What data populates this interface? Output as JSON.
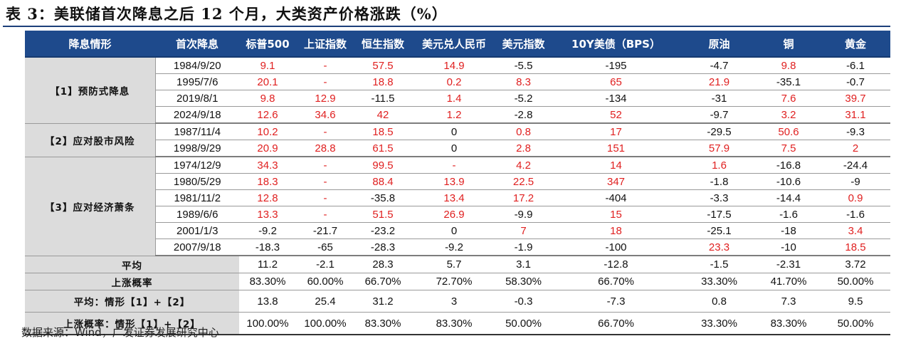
{
  "title": "表 3：美联储首次降息之后 12 个月，大类资产价格涨跌（%）",
  "source": "数据来源：Wind，广发证券发展研究中心",
  "colors": {
    "header_bg": "#1e4a8c",
    "label_bg": "#dcdcdc",
    "up_red": "#e02020"
  },
  "headers": [
    "降息情形",
    "首次降息",
    "标普500",
    "上证指数",
    "恒生指数",
    "美元兑人民币",
    "美元指数",
    "10Y美债（BPS）",
    "原油",
    "铜",
    "黄金"
  ],
  "groups": [
    {
      "label": "【1】预防式降息",
      "rows": [
        {
          "date": "1984/9/20",
          "values": [
            "9.1",
            "-",
            "57.5",
            "14.9",
            "-5.5",
            "-195",
            "-4.7",
            "9.8",
            "-6.1"
          ]
        },
        {
          "date": "1995/7/6",
          "values": [
            "20.1",
            "-",
            "18.8",
            "0.2",
            "8.3",
            "65",
            "21.9",
            "-35.1",
            "-0.7"
          ]
        },
        {
          "date": "2019/8/1",
          "values": [
            "9.8",
            "12.9",
            "-11.5",
            "1.4",
            "-5.2",
            "-134",
            "-31",
            "7.6",
            "39.7"
          ]
        },
        {
          "date": "2024/9/18",
          "values": [
            "12.6",
            "34.6",
            "42",
            "1.2",
            "-2.8",
            "52",
            "-9.7",
            "3.2",
            "31.1"
          ]
        }
      ]
    },
    {
      "label": "【2】应对股市风险",
      "rows": [
        {
          "date": "1987/11/4",
          "values": [
            "10.2",
            "-",
            "18.5",
            "0",
            "0.8",
            "17",
            "-29.5",
            "50.6",
            "-9.3"
          ]
        },
        {
          "date": "1998/9/29",
          "values": [
            "20.9",
            "28.8",
            "61.5",
            "0",
            "2.8",
            "151",
            "57.9",
            "7.5",
            "2"
          ]
        }
      ]
    },
    {
      "label": "【3】应对经济萧条",
      "rows": [
        {
          "date": "1974/12/9",
          "values": [
            "34.3",
            "-",
            "99.5",
            "-",
            "4.2",
            "14",
            "1.6",
            "-16.8",
            "-24.4"
          ]
        },
        {
          "date": "1980/5/29",
          "values": [
            "18.3",
            "-",
            "88.4",
            "13.9",
            "22.5",
            "347",
            "-1.8",
            "-10.6",
            "-9"
          ]
        },
        {
          "date": "1981/11/2",
          "values": [
            "12.8",
            "-",
            "-35.8",
            "13.4",
            "17.2",
            "-404",
            "-3.3",
            "-14.4",
            "0.9"
          ]
        },
        {
          "date": "1989/6/6",
          "values": [
            "13.3",
            "-",
            "51.5",
            "26.9",
            "-9.9",
            "15",
            "-17.5",
            "-1.6",
            "-1.6"
          ]
        },
        {
          "date": "2001/1/3",
          "values": [
            "-9.2",
            "-21.7",
            "-23.2",
            "0",
            "7",
            "18",
            "-25.1",
            "-18",
            "3.4"
          ]
        },
        {
          "date": "2007/9/18",
          "values": [
            "-18.3",
            "-65",
            "-28.3",
            "-9.2",
            "-1.9",
            "-100",
            "23.3",
            "-10",
            "18.5"
          ]
        }
      ]
    }
  ],
  "summary": [
    {
      "label": "平均",
      "values": [
        "11.2",
        "-2.1",
        "28.3",
        "5.7",
        "3.1",
        "-12.8",
        "-1.5",
        "-2.31",
        "3.72"
      ]
    },
    {
      "label": "上涨概率",
      "values": [
        "83.30%",
        "60.00%",
        "66.70%",
        "72.70%",
        "58.30%",
        "66.70%",
        "33.30%",
        "41.70%",
        "50.00%"
      ]
    },
    {
      "label": "平均：情形【1】+【2】",
      "values": [
        "13.8",
        "25.4",
        "31.2",
        "3",
        "-0.3",
        "-7.3",
        "0.8",
        "7.3",
        "9.5"
      ]
    },
    {
      "label": "上涨概率：情形【1】+【2】",
      "values": [
        "100.00%",
        "100.00%",
        "83.30%",
        "83.30%",
        "50.00%",
        "66.70%",
        "33.30%",
        "83.30%",
        "50.00%"
      ]
    }
  ]
}
